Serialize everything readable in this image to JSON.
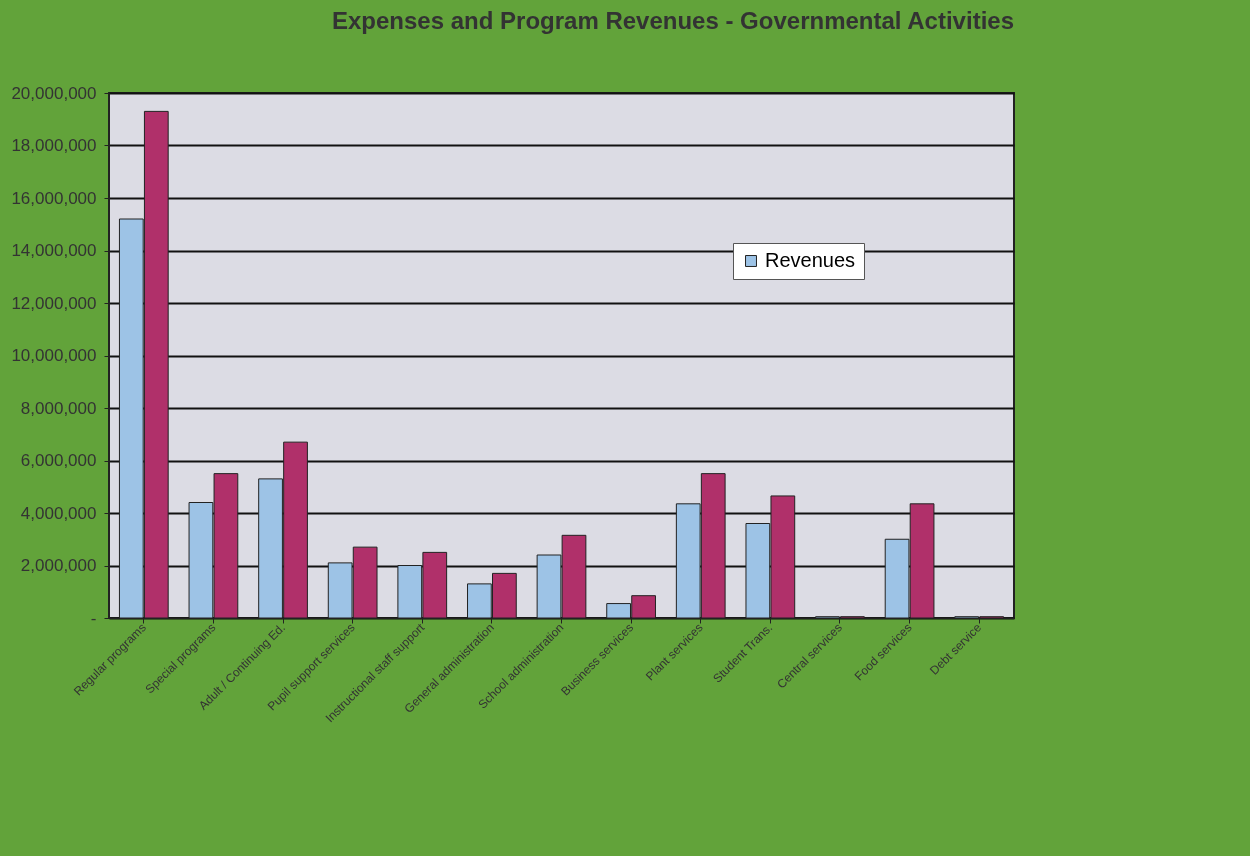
{
  "chart_data": {
    "type": "bar",
    "title": "Expenses and Program Revenues - Governmental Activities",
    "categories": [
      "Regular programs",
      "Special programs",
      "Adult / Continuing Ed.",
      "Pupil support services",
      "Instructional staff support",
      "General administration",
      "School administration",
      "Business services",
      "Plant services",
      "Student Trans.",
      "Central services",
      "Food services",
      "Debt service"
    ],
    "series": [
      {
        "name": "Revenues",
        "color": "#9dc3e6",
        "values": [
          15200000,
          4400000,
          5300000,
          2100000,
          2000000,
          1300000,
          2400000,
          550000,
          4350000,
          3600000,
          50000,
          3000000,
          50000
        ]
      },
      {
        "color": "#b0306a",
        "values": [
          19300000,
          5500000,
          6700000,
          2700000,
          2500000,
          1700000,
          3150000,
          850000,
          5500000,
          4650000,
          50000,
          4350000,
          50000
        ]
      }
    ],
    "ylim": [
      0,
      20000000
    ],
    "yticks": [
      {
        "value": 0,
        "label": "-"
      },
      {
        "value": 2000000,
        "label": "2,000,000"
      },
      {
        "value": 4000000,
        "label": "4,000,000"
      },
      {
        "value": 6000000,
        "label": "6,000,000"
      },
      {
        "value": 8000000,
        "label": "8,000,000"
      },
      {
        "value": 10000000,
        "label": "10,000,000"
      },
      {
        "value": 12000000,
        "label": "12,000,000"
      },
      {
        "value": 14000000,
        "label": "14,000,000"
      },
      {
        "value": 16000000,
        "label": "16,000,000"
      },
      {
        "value": 18000000,
        "label": "18,000,000"
      },
      {
        "value": 20000000,
        "label": "20,000,000"
      }
    ],
    "grid": "y",
    "legend": "top right"
  }
}
